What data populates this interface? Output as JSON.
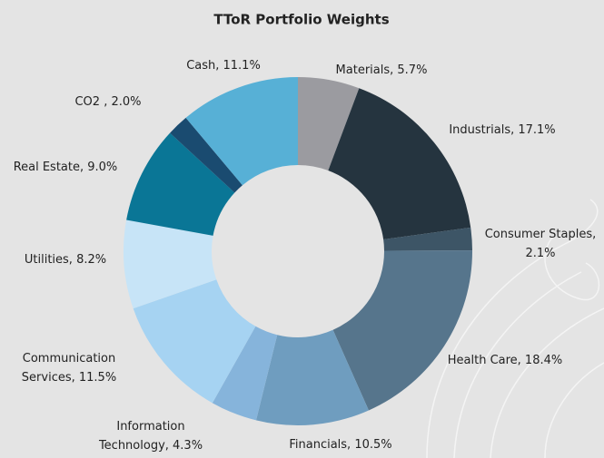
{
  "chart_data": {
    "type": "donut",
    "title": "TToR Portfolio Weights",
    "labels": [
      [
        "Materials, 5.7%"
      ],
      [
        "Industrials, 17.1%"
      ],
      [
        "Consumer Staples,",
        "2.1%"
      ],
      [
        "Health Care, 18.4%"
      ],
      [
        "Financials, 10.5%"
      ],
      [
        "Information",
        "Technology, 4.3%"
      ],
      [
        "Communication",
        "Services, 11.5%"
      ],
      [
        "Utilities, 8.2%"
      ],
      [
        "Real Estate, 9.0%"
      ],
      [
        "CO2 , 2.0%"
      ],
      [
        "Cash, 11.1%"
      ]
    ],
    "values": [
      5.7,
      17.1,
      2.1,
      18.4,
      10.5,
      4.3,
      11.5,
      8.2,
      9.0,
      2.0,
      11.1
    ],
    "colors": [
      "#9b9ba0",
      "#25343f",
      "#3d5566",
      "#56758c",
      "#6f9dbf",
      "#86b4db",
      "#a6d3f2",
      "#c7e4f7",
      "#0a7696",
      "#1a4b70",
      "#57b0d6"
    ]
  }
}
